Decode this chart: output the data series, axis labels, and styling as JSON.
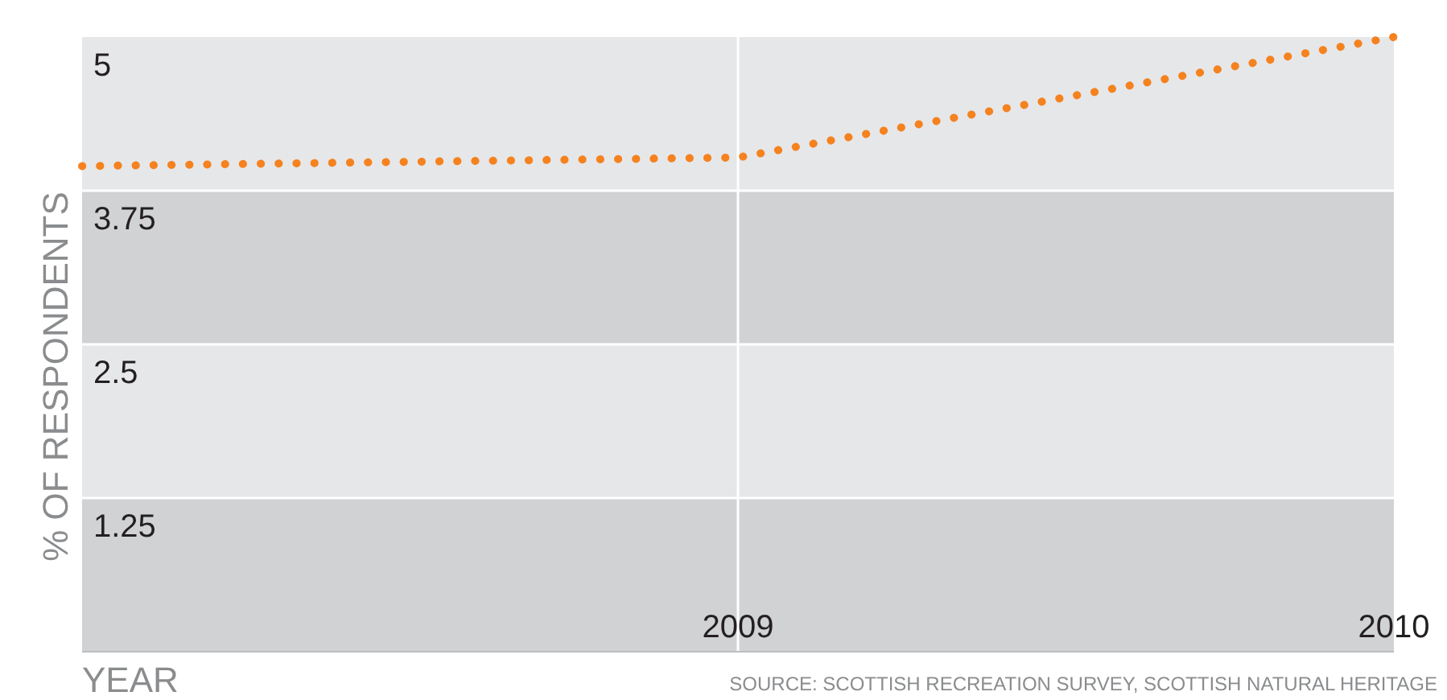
{
  "chart_data": {
    "type": "line",
    "xlabel": "YEAR",
    "ylabel": "% OF RESPONDENTS",
    "annotations": [
      "SOURCE: SCOTTISH RECREATION SURVEY, SCOTTISH NATURAL HERITAGE"
    ],
    "x": [
      2008,
      2009,
      2010
    ],
    "xlim": [
      2008,
      2010
    ],
    "xticks": [
      2009,
      2010
    ],
    "ylim": [
      0,
      5
    ],
    "yticks": [
      1.25,
      2.5,
      3.75,
      5
    ],
    "series": [
      {
        "color": "#f5821f",
        "values": [
          3.95,
          4.02,
          5.0
        ]
      }
    ],
    "bands": [
      {
        "axis": "y",
        "from": 0,
        "to": 1.25,
        "color": "#d1d2d4"
      },
      {
        "axis": "y",
        "from": 1.25,
        "to": 2.5,
        "color": "#e6e7e9"
      },
      {
        "axis": "y",
        "from": 2.5,
        "to": 3.75,
        "color": "#d1d2d4"
      },
      {
        "axis": "y",
        "from": 3.75,
        "to": 5,
        "color": "#e6e7e9"
      }
    ],
    "line_style": "dotted",
    "grid": true
  }
}
